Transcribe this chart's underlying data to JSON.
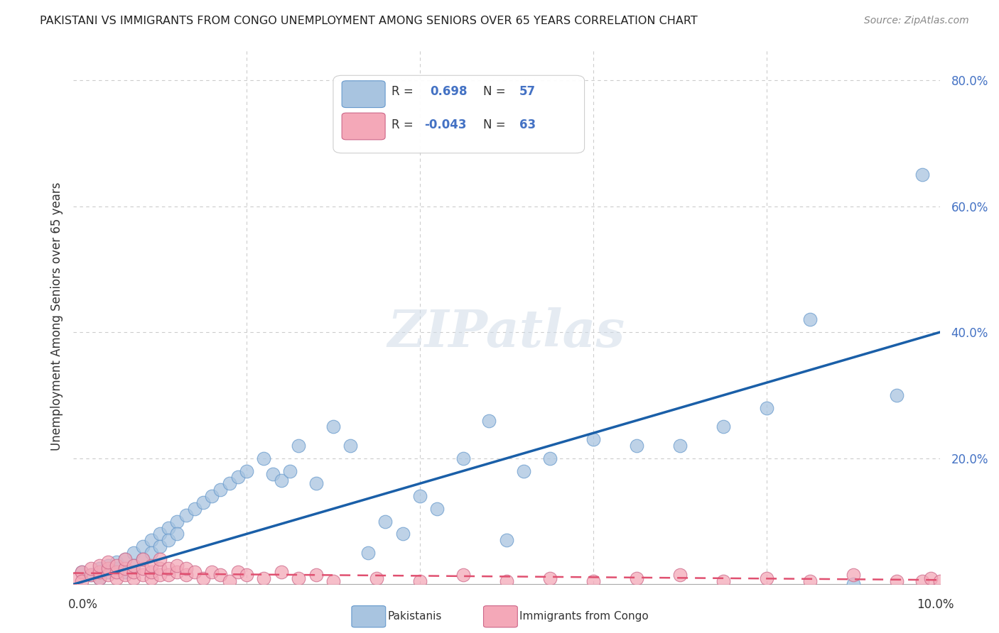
{
  "title": "PAKISTANI VS IMMIGRANTS FROM CONGO UNEMPLOYMENT AMONG SENIORS OVER 65 YEARS CORRELATION CHART",
  "source": "Source: ZipAtlas.com",
  "ylabel": "Unemployment Among Seniors over 65 years",
  "xlim": [
    0.0,
    0.1
  ],
  "ylim": [
    0.0,
    0.85
  ],
  "r_pakistani": 0.698,
  "n_pakistani": 57,
  "r_congo": -0.043,
  "n_congo": 63,
  "color_pakistani": "#a8c4e0",
  "color_pakistani_edge": "#6699cc",
  "color_pakistani_line": "#1a5fa8",
  "color_congo": "#f4a8b8",
  "color_congo_edge": "#cc6688",
  "color_congo_line": "#e05070",
  "pakistani_x": [
    0.001,
    0.002,
    0.003,
    0.003,
    0.004,
    0.004,
    0.005,
    0.005,
    0.006,
    0.006,
    0.007,
    0.007,
    0.008,
    0.008,
    0.009,
    0.009,
    0.01,
    0.01,
    0.011,
    0.011,
    0.012,
    0.012,
    0.013,
    0.014,
    0.015,
    0.016,
    0.017,
    0.018,
    0.019,
    0.02,
    0.022,
    0.023,
    0.024,
    0.025,
    0.026,
    0.028,
    0.03,
    0.032,
    0.034,
    0.036,
    0.038,
    0.04,
    0.042,
    0.045,
    0.048,
    0.05,
    0.052,
    0.055,
    0.06,
    0.065,
    0.07,
    0.075,
    0.08,
    0.085,
    0.09,
    0.095,
    0.098
  ],
  "pakistani_y": [
    0.02,
    0.015,
    0.025,
    0.01,
    0.03,
    0.02,
    0.025,
    0.035,
    0.04,
    0.02,
    0.05,
    0.03,
    0.06,
    0.04,
    0.07,
    0.05,
    0.08,
    0.06,
    0.09,
    0.07,
    0.1,
    0.08,
    0.11,
    0.12,
    0.13,
    0.14,
    0.15,
    0.16,
    0.17,
    0.18,
    0.2,
    0.175,
    0.165,
    0.18,
    0.22,
    0.16,
    0.25,
    0.22,
    0.05,
    0.1,
    0.08,
    0.14,
    0.12,
    0.2,
    0.26,
    0.07,
    0.18,
    0.2,
    0.23,
    0.22,
    0.22,
    0.25,
    0.28,
    0.42,
    0.0,
    0.3,
    0.65
  ],
  "congo_x": [
    0.0005,
    0.001,
    0.001,
    0.002,
    0.002,
    0.003,
    0.003,
    0.003,
    0.004,
    0.004,
    0.004,
    0.005,
    0.005,
    0.005,
    0.006,
    0.006,
    0.006,
    0.007,
    0.007,
    0.007,
    0.008,
    0.008,
    0.008,
    0.009,
    0.009,
    0.009,
    0.01,
    0.01,
    0.01,
    0.011,
    0.011,
    0.012,
    0.012,
    0.013,
    0.013,
    0.014,
    0.015,
    0.016,
    0.017,
    0.018,
    0.019,
    0.02,
    0.022,
    0.024,
    0.026,
    0.028,
    0.03,
    0.035,
    0.04,
    0.045,
    0.05,
    0.055,
    0.06,
    0.065,
    0.07,
    0.075,
    0.08,
    0.085,
    0.09,
    0.095,
    0.098,
    0.099,
    0.1
  ],
  "congo_y": [
    0.01,
    0.02,
    0.005,
    0.015,
    0.025,
    0.01,
    0.02,
    0.03,
    0.015,
    0.025,
    0.035,
    0.01,
    0.02,
    0.03,
    0.015,
    0.025,
    0.04,
    0.01,
    0.02,
    0.03,
    0.015,
    0.025,
    0.04,
    0.01,
    0.02,
    0.03,
    0.015,
    0.025,
    0.04,
    0.015,
    0.025,
    0.02,
    0.03,
    0.015,
    0.025,
    0.02,
    0.01,
    0.02,
    0.015,
    0.005,
    0.02,
    0.015,
    0.01,
    0.02,
    0.01,
    0.015,
    0.005,
    0.01,
    0.005,
    0.015,
    0.005,
    0.01,
    0.005,
    0.01,
    0.015,
    0.005,
    0.01,
    0.005,
    0.015,
    0.005,
    0.005,
    0.01,
    0.005
  ]
}
